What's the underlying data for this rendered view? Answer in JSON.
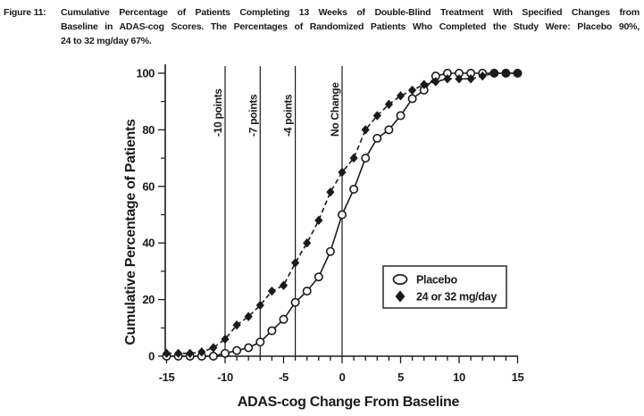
{
  "figure": {
    "label": "Figure 11:",
    "title_lines": [
      "Cumulative Percentage of Patients Completing 13 Weeks of Double-Blind Treatment With Specified Changes from",
      "Baseline in ADAS-cog Scores. The Percentages of Randomized Patients Who Completed the Study Were: Placebo 90%,",
      "24 to 32 mg/day 67%."
    ]
  },
  "colors": {
    "ink": "#1a1a1a",
    "background": "#ffffff"
  },
  "chart_data": {
    "type": "line",
    "title": "Cumulative Percentage of Patients Completing 13 Weeks of Double-Blind Treatment With Specified Changes from Baseline in ADAS-cog Scores. The Percentages of Randomized Patients Who Completed the Study Were: Placebo 90%, 24 to 32 mg/day 67%.",
    "xlabel": "ADAS-cog Change From Baseline",
    "ylabel": "Cumulative Percentage of Patients",
    "xlim": [
      -15,
      15
    ],
    "ylim": [
      0,
      100
    ],
    "grid": false,
    "x_major_ticks": [
      -15,
      -10,
      -5,
      0,
      5,
      10,
      15
    ],
    "x_minor_tick_step": 1,
    "y_major_ticks": [
      0,
      20,
      40,
      60,
      80,
      100
    ],
    "y_minor_tick_step": 10,
    "reference_lines": [
      {
        "x": -10,
        "label": "-10 points"
      },
      {
        "x": -7,
        "label": "-7 points"
      },
      {
        "x": -4,
        "label": "-4 points"
      },
      {
        "x": 0,
        "label": "No Change"
      }
    ],
    "legend": {
      "position": "lower-right"
    },
    "x": [
      -15,
      -14,
      -13,
      -12,
      -11,
      -10,
      -9,
      -8,
      -7,
      -6,
      -5,
      -4,
      -3,
      -2,
      -1,
      0,
      1,
      2,
      3,
      4,
      5,
      6,
      7,
      8,
      9,
      10,
      11,
      12,
      13,
      14,
      15
    ],
    "series": [
      {
        "name": "Placebo",
        "marker": "open-circle",
        "line_style": "solid",
        "values": [
          0,
          0,
          0,
          0,
          0,
          1,
          2,
          3,
          5,
          9,
          13,
          19,
          23,
          28,
          37,
          50,
          59,
          70,
          77,
          80,
          85,
          91,
          94,
          99,
          100,
          100,
          100,
          100,
          100,
          100,
          100
        ]
      },
      {
        "name": "24 or 32 mg/day",
        "marker": "filled-diamond",
        "line_style": "dashed",
        "values": [
          1,
          1,
          1,
          1.5,
          3,
          6,
          11,
          14,
          18,
          23,
          25,
          33,
          40,
          48,
          58,
          65,
          70,
          80,
          85,
          89,
          92,
          94,
          96,
          97,
          98,
          98,
          98,
          99,
          100,
          100,
          100
        ]
      }
    ]
  }
}
